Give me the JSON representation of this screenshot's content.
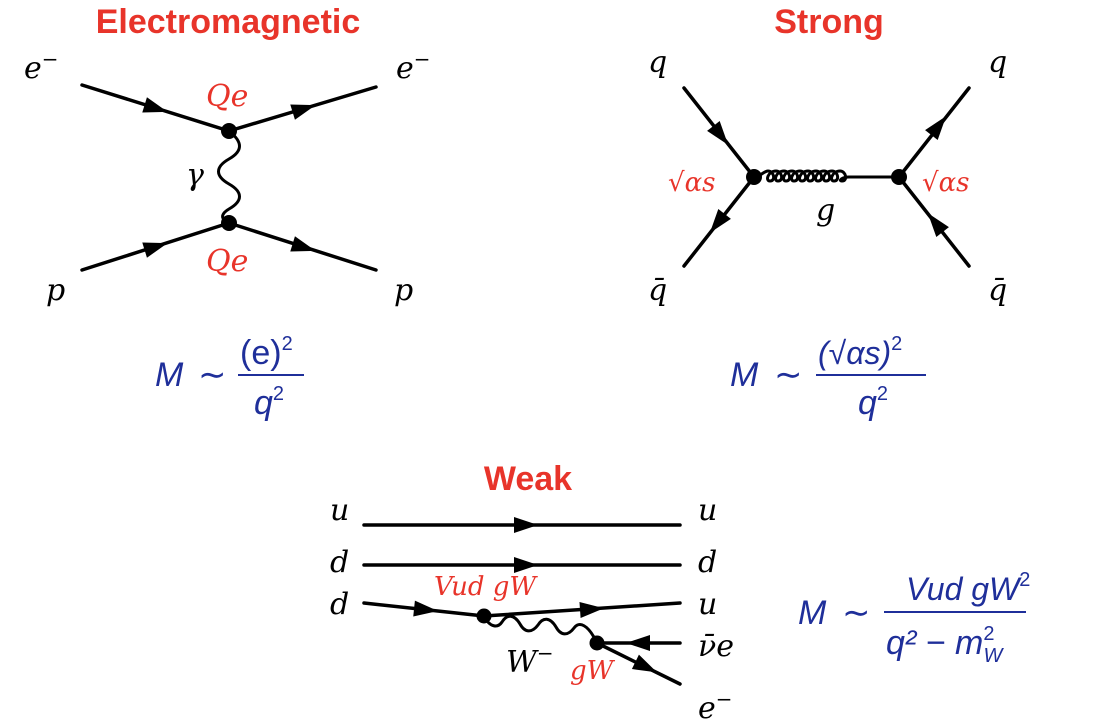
{
  "electromagnetic": {
    "title": "Electromagnetic",
    "particles": {
      "in_top": "e",
      "in_top_sup": "−",
      "out_top": "e",
      "out_top_sup": "−",
      "in_bottom": "p",
      "out_bottom": "p"
    },
    "mediator": "γ",
    "coupling_top": "Qe",
    "coupling_bottom": "Qe",
    "amplitude": {
      "lhs": "M",
      "sim": "∼",
      "numerator": "(e)",
      "numerator_sup": "2",
      "denominator": "q",
      "denominator_sup": "2"
    }
  },
  "strong": {
    "title": "Strong",
    "particles": {
      "in_top": "q",
      "out_top": "q",
      "in_bottom": "q̄",
      "out_bottom": "q̄"
    },
    "mediator": "g",
    "coupling_left": "√αs",
    "coupling_right": "√αs",
    "amplitude": {
      "lhs": "M",
      "sim": "∼",
      "numerator": "(√αs)",
      "numerator_sup": "2",
      "denominator": "q",
      "denominator_sup": "2"
    }
  },
  "weak": {
    "title": "Weak",
    "particles": {
      "in_1": "u",
      "in_2": "d",
      "in_3": "d",
      "out_1": "u",
      "out_2": "d",
      "out_3": "u",
      "out_4": "ν̄e",
      "out_5": "e",
      "out_5_sup": "−"
    },
    "mediator": "W",
    "mediator_sup": "−",
    "coupling_left": "Vud gW",
    "coupling_right": "gW",
    "amplitude": {
      "lhs": "M",
      "sim": "∼",
      "numerator": "Vud gW",
      "numerator_sup": "2",
      "denominator": "q² − m",
      "denominator_sup": "2",
      "denominator_sub": "W"
    }
  }
}
